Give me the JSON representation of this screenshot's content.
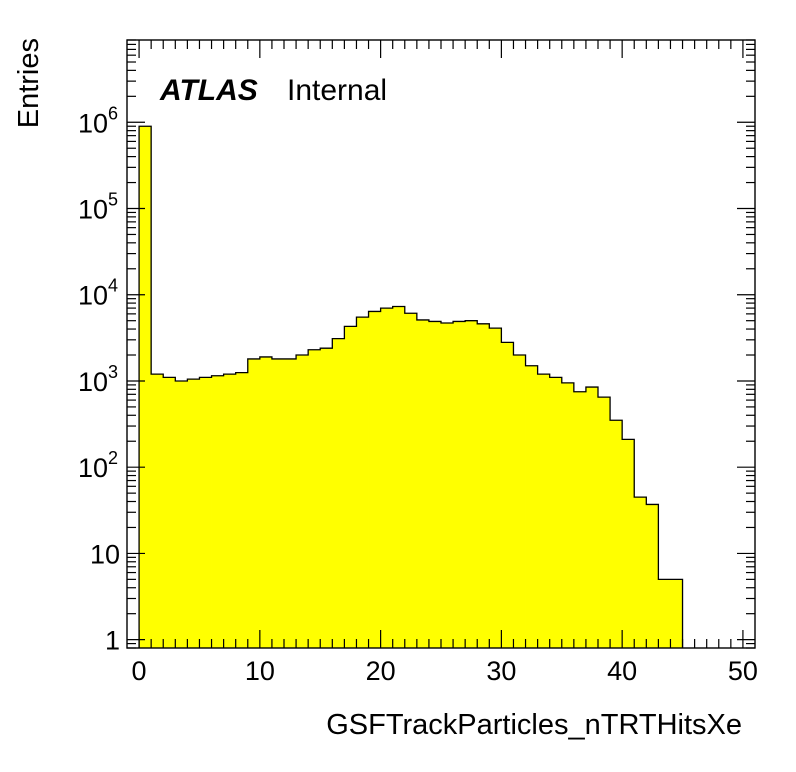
{
  "chart_data": {
    "type": "bar",
    "title": "",
    "xlabel": "GSFTrackParticles_nTRTHitsXe",
    "ylabel": "Entries",
    "xlim": [
      -1,
      51
    ],
    "ylim": [
      0.8,
      9000000
    ],
    "yscale": "log",
    "bin_width": 1,
    "fill_color": "#ffff00",
    "line_color": "#000000",
    "atlas_label": "ATLAS",
    "atlas_sublabel": "Internal",
    "x_ticks": [
      0,
      10,
      20,
      30,
      40,
      50
    ],
    "y_ticks": [
      {
        "value": 1,
        "base": "1",
        "exp": ""
      },
      {
        "value": 10,
        "base": "10",
        "exp": ""
      },
      {
        "value": 100,
        "base": "10",
        "exp": "2"
      },
      {
        "value": 1000,
        "base": "10",
        "exp": "3"
      },
      {
        "value": 10000,
        "base": "10",
        "exp": "4"
      },
      {
        "value": 100000,
        "base": "10",
        "exp": "5"
      },
      {
        "value": 1000000,
        "base": "10",
        "exp": "6"
      }
    ],
    "bins": [
      0,
      1,
      2,
      3,
      4,
      5,
      6,
      7,
      8,
      9,
      10,
      11,
      12,
      13,
      14,
      15,
      16,
      17,
      18,
      19,
      20,
      21,
      22,
      23,
      24,
      25,
      26,
      27,
      28,
      29,
      30,
      31,
      32,
      33,
      34,
      35,
      36,
      37,
      38,
      39,
      40,
      41,
      42,
      43,
      44
    ],
    "values": [
      900000,
      1200,
      1100,
      1000,
      1050,
      1100,
      1150,
      1200,
      1250,
      1800,
      1900,
      1800,
      1800,
      2000,
      2300,
      2400,
      3100,
      4300,
      5500,
      6400,
      7000,
      7300,
      6100,
      5100,
      4900,
      4700,
      4900,
      5000,
      4600,
      4100,
      2800,
      2000,
      1500,
      1200,
      1100,
      950,
      750,
      850,
      650,
      350,
      210,
      45,
      37,
      5,
      5
    ]
  }
}
